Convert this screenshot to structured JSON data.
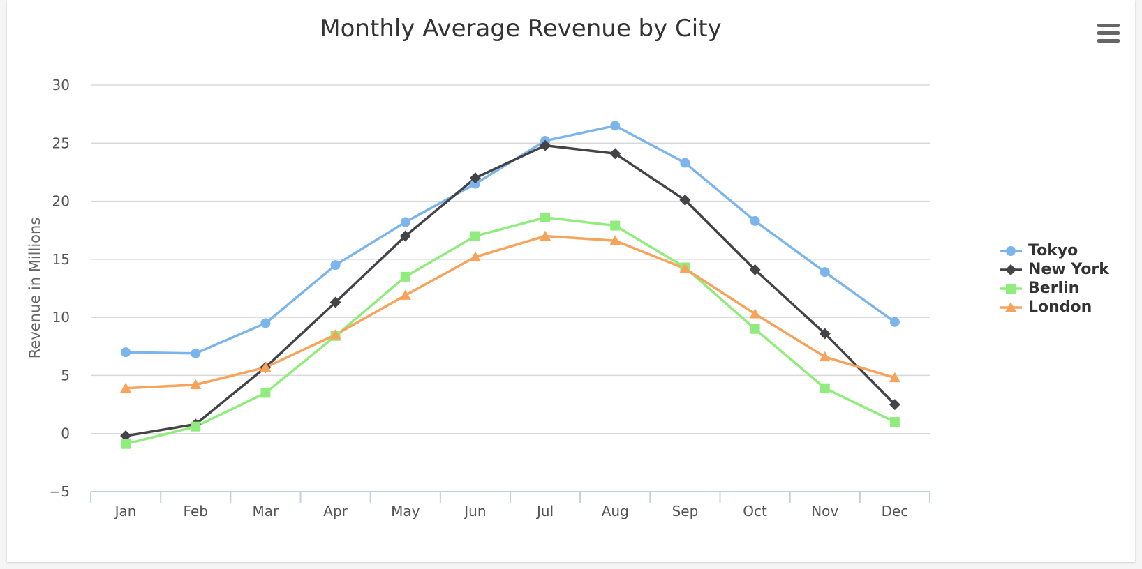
{
  "chart_data": {
    "type": "line",
    "title": "Monthly Average Revenue by City",
    "xlabel": "",
    "ylabel": "Revenue in Millions",
    "categories": [
      "Jan",
      "Feb",
      "Mar",
      "Apr",
      "May",
      "Jun",
      "Jul",
      "Aug",
      "Sep",
      "Oct",
      "Nov",
      "Dec"
    ],
    "ylim": [
      -5,
      30
    ],
    "yticks": [
      -5,
      0,
      5,
      10,
      15,
      20,
      25,
      30
    ],
    "grid": true,
    "legend": "right",
    "series": [
      {
        "name": "Tokyo",
        "color": "#7cb5ec",
        "marker": "circle",
        "values": [
          7.0,
          6.9,
          9.5,
          14.5,
          18.2,
          21.5,
          25.2,
          26.5,
          23.3,
          18.3,
          13.9,
          9.6
        ]
      },
      {
        "name": "New York",
        "color": "#434348",
        "marker": "diamond",
        "values": [
          -0.2,
          0.8,
          5.7,
          11.3,
          17.0,
          22.0,
          24.8,
          24.1,
          20.1,
          14.1,
          8.6,
          2.5
        ]
      },
      {
        "name": "Berlin",
        "color": "#90ed7d",
        "marker": "square",
        "values": [
          -0.9,
          0.6,
          3.5,
          8.4,
          13.5,
          17.0,
          18.6,
          17.9,
          14.3,
          9.0,
          3.9,
          1.0
        ]
      },
      {
        "name": "London",
        "color": "#f7a35c",
        "marker": "triangle",
        "values": [
          3.9,
          4.2,
          5.7,
          8.5,
          11.9,
          15.2,
          17.0,
          16.6,
          14.2,
          10.3,
          6.6,
          4.8
        ]
      }
    ]
  },
  "toolbar": {
    "menu_icon": "hamburger-menu-icon"
  }
}
